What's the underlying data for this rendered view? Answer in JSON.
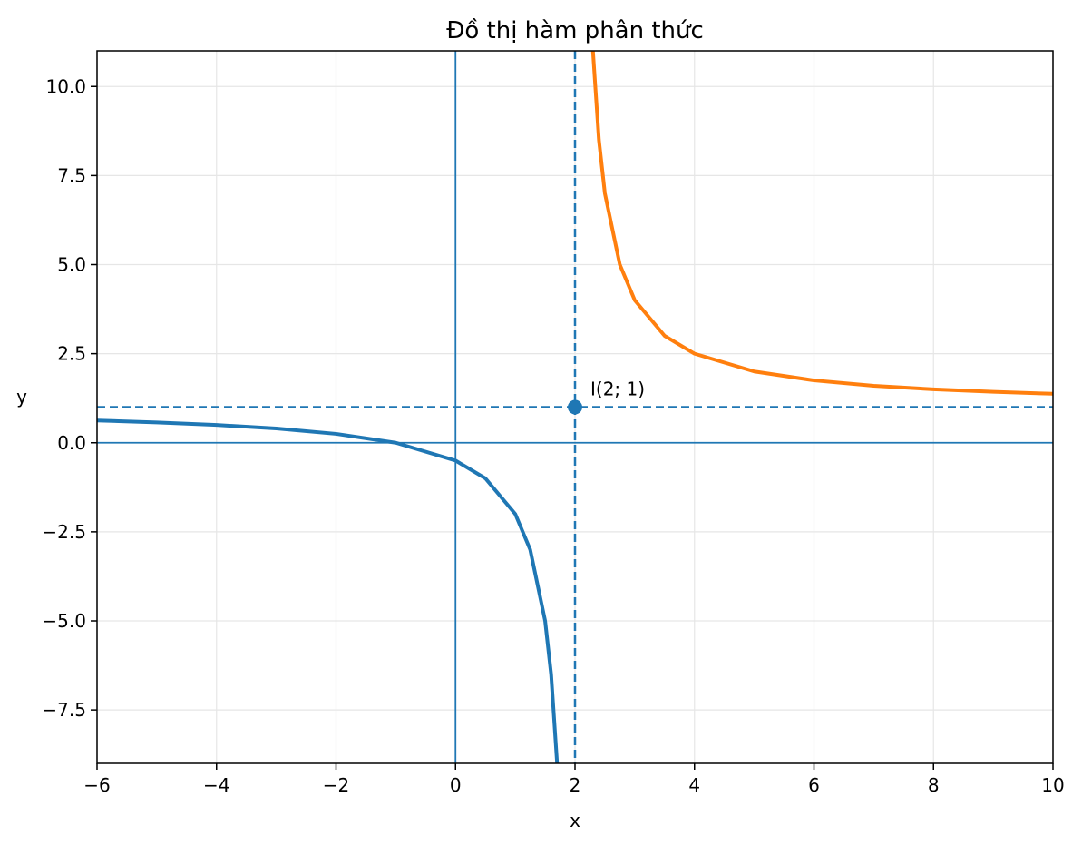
{
  "chart_data": {
    "type": "line",
    "title": "Đồ thị hàm phân thức",
    "xlabel": "x",
    "ylabel": "y",
    "xlim": [
      -6,
      10
    ],
    "ylim": [
      -9,
      11
    ],
    "grid": true,
    "xticks": [
      -6,
      -4,
      -2,
      0,
      2,
      4,
      6,
      8,
      10
    ],
    "xtick_labels": [
      "−6",
      "−4",
      "−2",
      "0",
      "2",
      "4",
      "6",
      "8",
      "10"
    ],
    "yticks": [
      -7.5,
      -5,
      -2.5,
      0,
      2.5,
      5,
      7.5,
      10
    ],
    "ytick_labels": [
      "−7.5",
      "−5.0",
      "−2.5",
      "0.0",
      "2.5",
      "5.0",
      "7.5",
      "10.0"
    ],
    "series": [
      {
        "color": "#1f77b4",
        "x": [
          -6,
          -5,
          -4,
          -3,
          -2,
          -1,
          0,
          0.5,
          1,
          1.25,
          1.5,
          1.6,
          1.7
        ],
        "y": [
          0.625,
          0.571,
          0.5,
          0.4,
          0.25,
          0,
          -0.5,
          -1,
          -2,
          -3,
          -5,
          -6.5,
          -9
        ]
      },
      {
        "color": "#ff7f0e",
        "x": [
          2.3,
          2.4,
          2.5,
          2.75,
          3,
          3.5,
          4,
          5,
          6,
          7,
          8,
          9,
          10
        ],
        "y": [
          11,
          8.5,
          7,
          5,
          4,
          3,
          2.5,
          2,
          1.75,
          1.6,
          1.5,
          1.43,
          1.375
        ]
      }
    ],
    "asymptotes": {
      "vertical_x": 2,
      "horizontal_y": 1,
      "color": "#1f77b4"
    },
    "axis_lines": {
      "x0": 0,
      "y0": 0,
      "color": "#1f77b4"
    },
    "point": {
      "x": 2,
      "y": 1,
      "label": "I(2; 1)",
      "color": "#1f77b4"
    }
  }
}
